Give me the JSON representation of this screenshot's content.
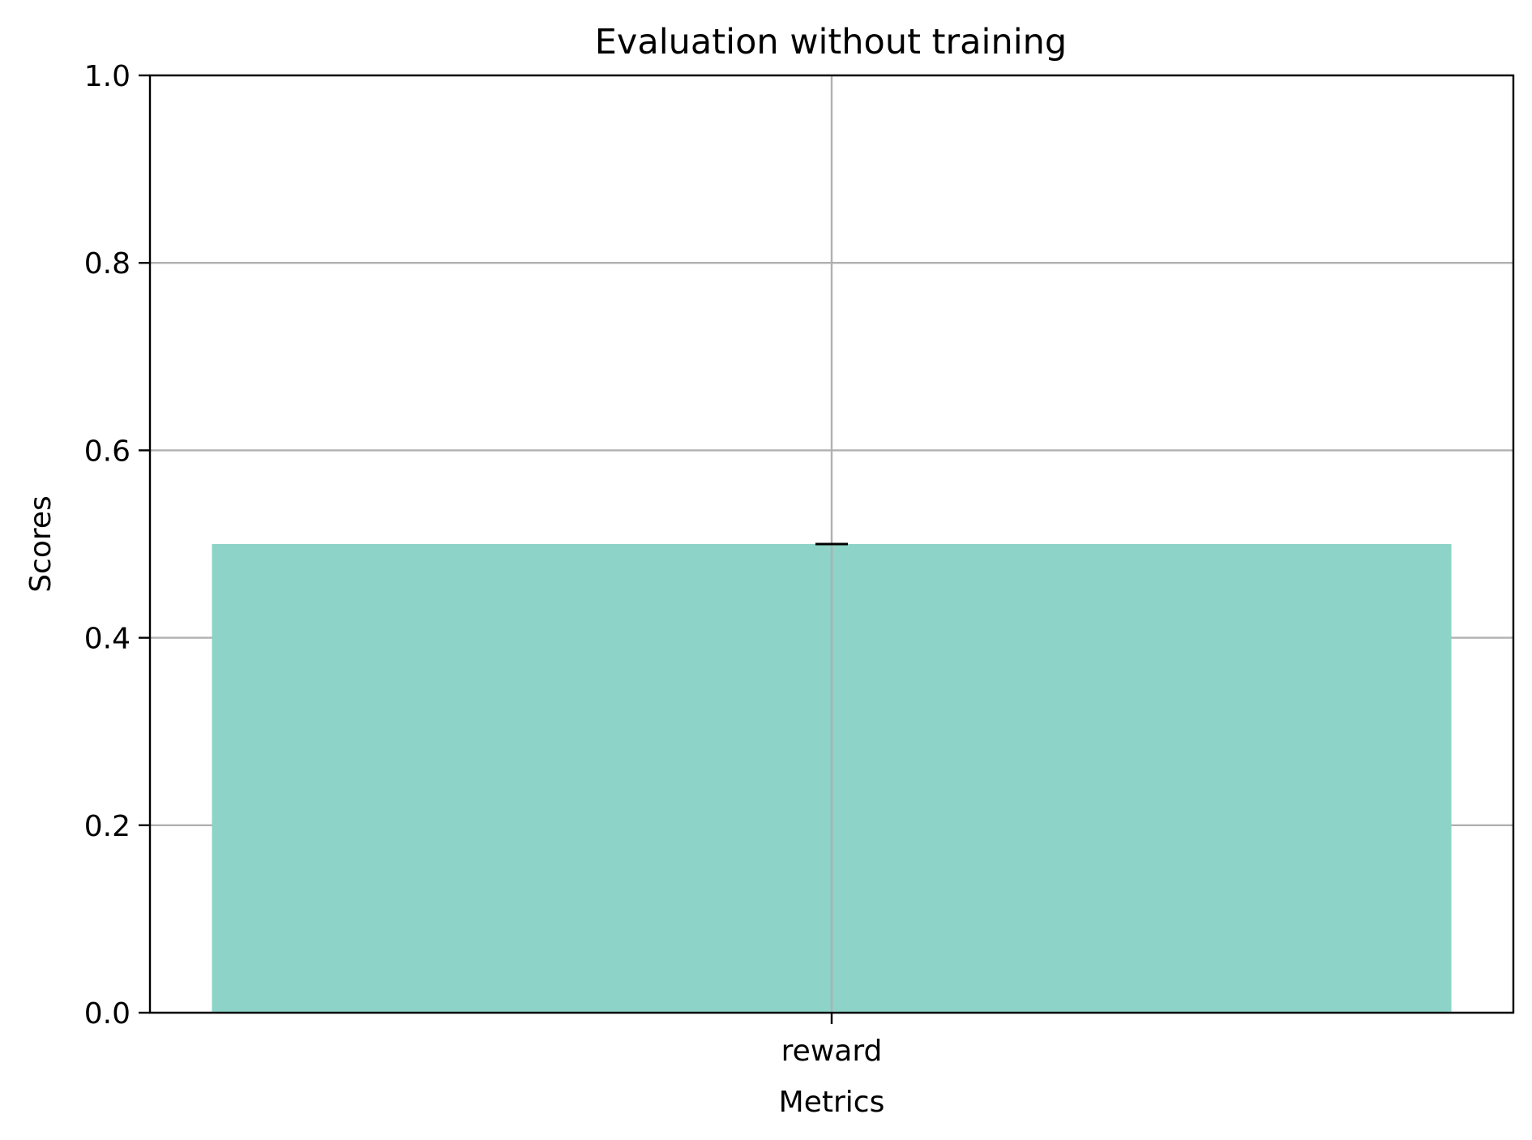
{
  "chart_data": {
    "type": "bar",
    "title": "Evaluation without training",
    "xlabel": "Metrics",
    "ylabel": "Scores",
    "categories": [
      "reward"
    ],
    "values": [
      0.5
    ],
    "error_bars": [
      0.0
    ],
    "ylim": [
      0,
      1.0
    ],
    "yticks": [
      "0.0",
      "0.2",
      "0.4",
      "0.6",
      "0.8",
      "1.0"
    ],
    "grid": true,
    "bar_color": "#8dd3c7",
    "legend": false
  }
}
